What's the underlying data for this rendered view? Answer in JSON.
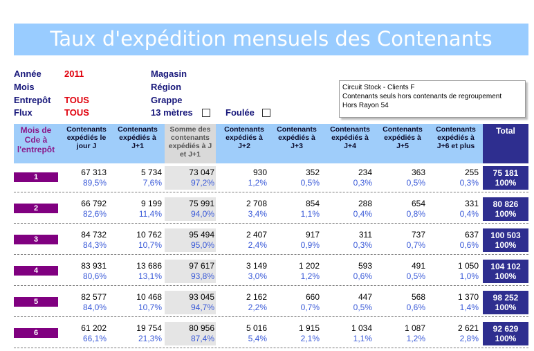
{
  "title": "Taux d'expédition mensuels des Contenants",
  "filters": {
    "annee_label": "Année",
    "annee_value": "2011",
    "mois_label": "Mois",
    "entrepot_label": "Entrepôt",
    "entrepot_value": "TOUS",
    "flux_label": "Flux",
    "flux_value": "TOUS",
    "magasin_label": "Magasin",
    "region_label": "Région",
    "grappe_label": "Grappe",
    "metres_label": "13 mètres",
    "foulee_label": "Foulée"
  },
  "note": {
    "line1": "Circuit Stock  - Clients F",
    "line2": "Contenants seuls hors contenants de regroupement",
    "line3": "Hors Rayon 54"
  },
  "headers": {
    "month": "Mois de Cde à l'entrepôt",
    "cols": [
      "Contenants expédiés le jour J",
      "Contenants expédiés à J+1",
      "Somme des contenants expédiés à J et J+1",
      "Contenants expédiés à J+2",
      "Contenants expédiés à J+3",
      "Contenants expédiés à J+4",
      "Contenants expédiés à J+5",
      "Contenants expédiés à J+6 et plus"
    ],
    "total": "Total"
  },
  "rows": [
    {
      "month": "1",
      "values": [
        "67 313",
        "5 734",
        "73 047",
        "930",
        "352",
        "234",
        "363",
        "255"
      ],
      "pcts": [
        "89,5%",
        "7,6%",
        "97,2%",
        "1,2%",
        "0,5%",
        "0,3%",
        "0,5%",
        "0,3%"
      ],
      "total": "75 181",
      "total_pct": "100%"
    },
    {
      "month": "2",
      "values": [
        "66 792",
        "9 199",
        "75 991",
        "2 708",
        "854",
        "288",
        "654",
        "331"
      ],
      "pcts": [
        "82,6%",
        "11,4%",
        "94,0%",
        "3,4%",
        "1,1%",
        "0,4%",
        "0,8%",
        "0,4%"
      ],
      "total": "80 826",
      "total_pct": "100%"
    },
    {
      "month": "3",
      "values": [
        "84 732",
        "10 762",
        "95 494",
        "2 407",
        "917",
        "311",
        "737",
        "637"
      ],
      "pcts": [
        "84,3%",
        "10,7%",
        "95,0%",
        "2,4%",
        "0,9%",
        "0,3%",
        "0,7%",
        "0,6%"
      ],
      "total": "100 503",
      "total_pct": "100%"
    },
    {
      "month": "4",
      "values": [
        "83 931",
        "13 686",
        "97 617",
        "3 149",
        "1 202",
        "593",
        "491",
        "1 050"
      ],
      "pcts": [
        "80,6%",
        "13,1%",
        "93,8%",
        "3,0%",
        "1,2%",
        "0,6%",
        "0,5%",
        "1,0%"
      ],
      "total": "104 102",
      "total_pct": "100%"
    },
    {
      "month": "5",
      "values": [
        "82 577",
        "10 468",
        "93 045",
        "2 162",
        "660",
        "447",
        "568",
        "1 370"
      ],
      "pcts": [
        "84,0%",
        "10,7%",
        "94,7%",
        "2,2%",
        "0,7%",
        "0,5%",
        "0,6%",
        "1,4%"
      ],
      "total": "98 252",
      "total_pct": "100%"
    },
    {
      "month": "6",
      "values": [
        "61 202",
        "19 754",
        "80 956",
        "5 016",
        "1 915",
        "1 034",
        "1 087",
        "2 621"
      ],
      "pcts": [
        "66,1%",
        "21,3%",
        "87,4%",
        "5,4%",
        "2,1%",
        "1,1%",
        "1,2%",
        "2,8%"
      ],
      "total": "92 629",
      "total_pct": "100%"
    }
  ]
}
